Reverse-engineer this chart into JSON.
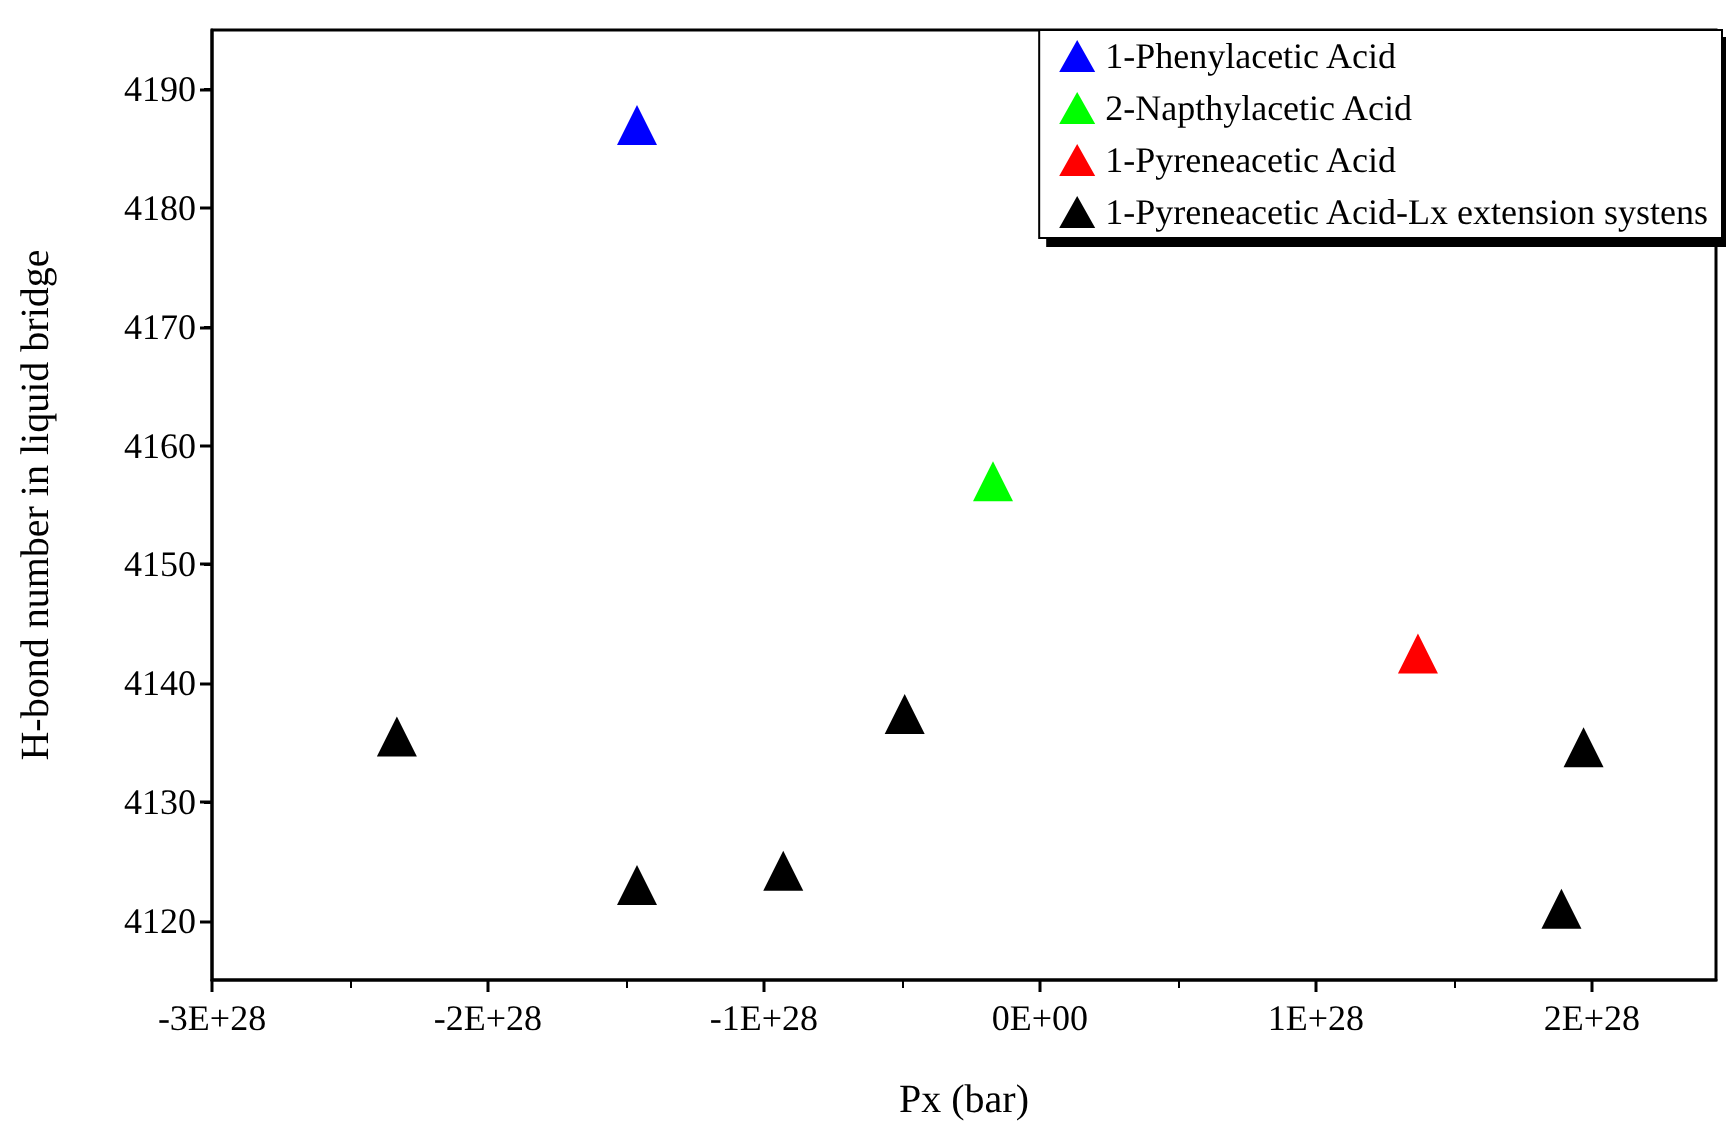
{
  "chart_data": {
    "type": "scatter",
    "xlabel": "Px (bar)",
    "ylabel": "H-bond number in liquid bridge",
    "xlim": [
      -3e+28,
      2.45e+28
    ],
    "ylim": [
      4115,
      4195
    ],
    "xticks": [
      {
        "value": -3e+28,
        "label": "-3E+28"
      },
      {
        "value": -2e+28,
        "label": "-2E+28"
      },
      {
        "value": -1e+28,
        "label": "-1E+28"
      },
      {
        "value": 0,
        "label": "0E+00"
      },
      {
        "value": 1e+28,
        "label": "1E+28"
      },
      {
        "value": 2e+28,
        "label": "2E+28"
      }
    ],
    "yticks": [
      4120,
      4130,
      4140,
      4150,
      4160,
      4170,
      4180,
      4190
    ],
    "grid": false,
    "legend": "top right",
    "marker": "triangle",
    "series": [
      {
        "name": "1-Phenylacetic Acid",
        "color": "#0000ff",
        "x": [
          -1.46e+28
        ],
        "values": [
          4187
        ]
      },
      {
        "name": "2-Napthylacetic Acid",
        "color": "#00ff00",
        "x": [
          -1.7e+27
        ],
        "values": [
          4157
        ]
      },
      {
        "name": "1-Pyreneacetic Acid",
        "color": "#ff0000",
        "x": [
          1.37e+28
        ],
        "values": [
          4142.5
        ]
      },
      {
        "name": "1-Pyreneacetic Acid-Lx extension systens",
        "color": "#000000",
        "x": [
          -2.33e+28,
          -1.46e+28,
          -9.3e+27,
          -4.9e+27,
          1.89e+28,
          1.97e+28
        ],
        "values": [
          4135.5,
          4123,
          4124.2,
          4137.4,
          4121,
          4134.6
        ]
      }
    ]
  }
}
